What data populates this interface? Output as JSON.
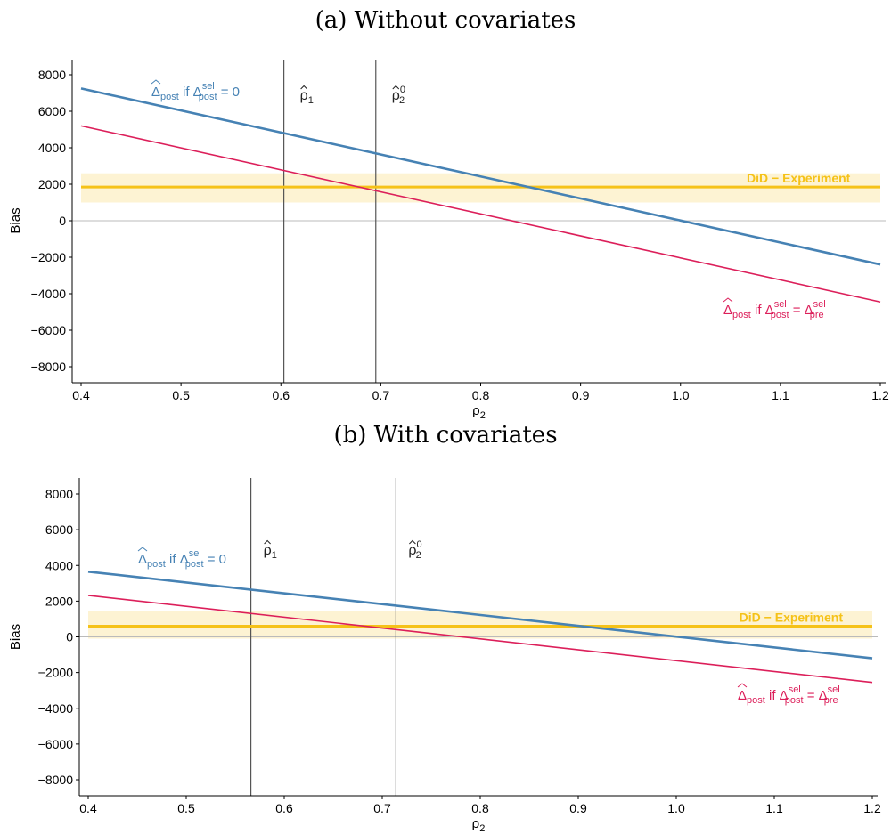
{
  "panels": [
    {
      "title": "(a) Without covariates",
      "chart_data": {
        "type": "line",
        "xlabel": "ρ2",
        "ylabel": "Bias",
        "xlim": [
          0.4,
          1.2
        ],
        "ylim": [
          -8000,
          8000
        ],
        "xticks": [
          0.4,
          0.5,
          0.6,
          0.7,
          0.8,
          0.9,
          1.0,
          1.1,
          1.2
        ],
        "xtick_labels": [
          "0.4",
          "0.5",
          "0.6",
          "0.7",
          "0.8",
          "0.9",
          "1.0",
          "1.1",
          "1.2"
        ],
        "yticks": [
          8000,
          6000,
          4000,
          2000,
          0,
          -2000,
          -4000,
          -6000,
          -8000
        ],
        "ytick_labels": [
          "8000",
          "6000",
          "4000",
          "2000",
          "0",
          "−2000",
          "−4000",
          "−6000",
          "−8000"
        ],
        "grid": false,
        "series": [
          {
            "name": "Δ̂post if Δselpost = 0",
            "color": "#4682B4",
            "x": [
              0.4,
              1.2
            ],
            "y": [
              7250,
              -2400
            ]
          },
          {
            "name": "Δ̂post if Δselpost = Δselpre",
            "color": "#DC1F5A",
            "x": [
              0.4,
              1.2
            ],
            "y": [
              5200,
              -4450
            ]
          }
        ],
        "hline": {
          "label": "DiD − Experiment",
          "y": 1850,
          "band": [
            1000,
            2600
          ],
          "color": "#F5C218"
        },
        "vlines": [
          {
            "x": 0.603,
            "label": "ρ̂1"
          },
          {
            "x": 0.695,
            "label": "ρ̂2⁰"
          }
        ]
      }
    },
    {
      "title": "(b) With covariates",
      "chart_data": {
        "type": "line",
        "xlabel": "ρ2",
        "ylabel": "Bias",
        "xlim": [
          0.4,
          1.2
        ],
        "ylim": [
          -8000,
          8000
        ],
        "xticks": [
          0.4,
          0.5,
          0.6,
          0.7,
          0.8,
          0.9,
          1.0,
          1.1,
          1.2
        ],
        "xtick_labels": [
          "0.4",
          "0.5",
          "0.6",
          "0.7",
          "0.8",
          "0.9",
          "1.0",
          "1.1",
          "1.2"
        ],
        "yticks": [
          8000,
          6000,
          4000,
          2000,
          0,
          -2000,
          -4000,
          -6000,
          -8000
        ],
        "ytick_labels": [
          "8000",
          "6000",
          "4000",
          "2000",
          "0",
          "−2000",
          "−4000",
          "−6000",
          "−8000"
        ],
        "grid": false,
        "series": [
          {
            "name": "Δ̂post if Δselpost = 0",
            "color": "#4682B4",
            "x": [
              0.4,
              1.2
            ],
            "y": [
              3650,
              -1200
            ]
          },
          {
            "name": "Δ̂post if Δselpost = Δselpre",
            "color": "#DC1F5A",
            "x": [
              0.4,
              1.2
            ],
            "y": [
              2320,
              -2550
            ]
          }
        ],
        "hline": {
          "label": "DiD − Experiment",
          "y": 600,
          "band": [
            -100,
            1450
          ],
          "color": "#F5C218"
        },
        "vlines": [
          {
            "x": 0.566,
            "label": "ρ̂1"
          },
          {
            "x": 0.714,
            "label": "ρ̂2⁰"
          }
        ]
      }
    }
  ]
}
